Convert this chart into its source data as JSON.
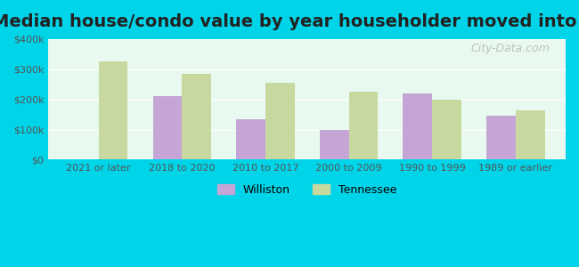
{
  "title": "Median house/condo value by year householder moved into unit",
  "categories": [
    "2021 or later",
    "2018 to 2020",
    "2010 to 2017",
    "2000 to 2009",
    "1990 to 1999",
    "1989 or earlier"
  ],
  "williston": [
    null,
    210000,
    135000,
    100000,
    220000,
    145000
  ],
  "tennessee": [
    325000,
    285000,
    255000,
    225000,
    200000,
    165000
  ],
  "williston_color": "#c5a5d5",
  "tennessee_color": "#c8d9a0",
  "background_color": "#e8faf0",
  "outer_background": "#00d4e8",
  "ylim": [
    0,
    400000
  ],
  "yticks": [
    0,
    100000,
    200000,
    300000,
    400000
  ],
  "ytick_labels": [
    "$0",
    "$100k",
    "$200k",
    "$300k",
    "$400k"
  ],
  "legend_williston": "Williston",
  "legend_tennessee": "Tennessee",
  "watermark": "City-Data.com",
  "bar_width": 0.35,
  "title_fontsize": 14
}
